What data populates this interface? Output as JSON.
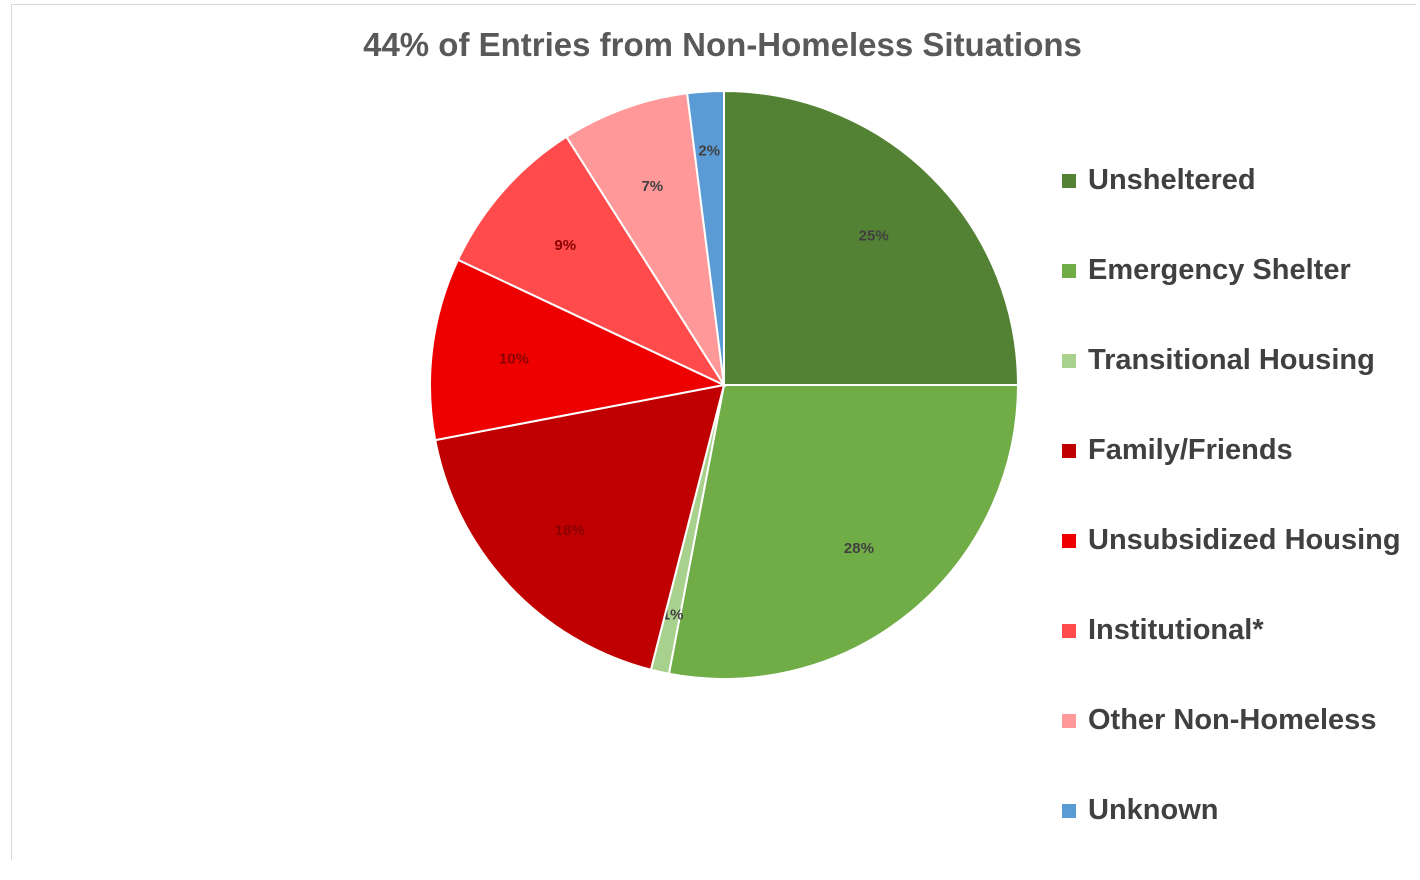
{
  "chart_data": {
    "type": "pie",
    "title": "44% of Entries from Non-Homeless Situations",
    "legend_position": "right",
    "slices": [
      {
        "label": "Unsheltered",
        "value": 25,
        "display": "25%",
        "color": "#548235"
      },
      {
        "label": "Emergency Shelter",
        "value": 28,
        "display": "28%",
        "color": "#70ad47"
      },
      {
        "label": "Transitional Housing",
        "value": 1,
        "display": "1%",
        "color": "#a9d18e"
      },
      {
        "label": "Family/Friends",
        "value": 18,
        "display": "18%",
        "color": "#c00000"
      },
      {
        "label": "Unsubsidized Housing",
        "value": 10,
        "display": "10%",
        "color": "#ee0000"
      },
      {
        "label": "Institutional*",
        "value": 9,
        "display": "9%",
        "color": "#ff4b4b"
      },
      {
        "label": "Other Non-Homeless",
        "value": 7,
        "display": "7%",
        "color": "#ff9999"
      },
      {
        "label": "Unknown",
        "value": 2,
        "display": "2%",
        "color": "#5b9bd5"
      }
    ]
  }
}
